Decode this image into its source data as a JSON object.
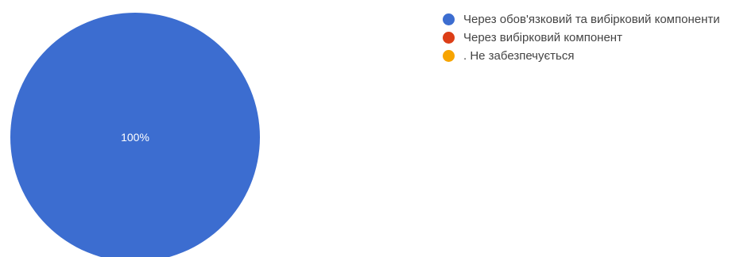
{
  "chart_data": {
    "type": "pie",
    "categories": [
      "Через обов'язковий та вибірковий компоненти",
      "Через вибірковий компонент",
      ". Не забезпечується"
    ],
    "values": [
      100,
      0,
      0
    ],
    "colors": [
      "#3c6dd0",
      "#dc3e17",
      "#f7a400"
    ],
    "slice_labels": [
      "100%",
      "",
      ""
    ],
    "legend_position": "right"
  }
}
